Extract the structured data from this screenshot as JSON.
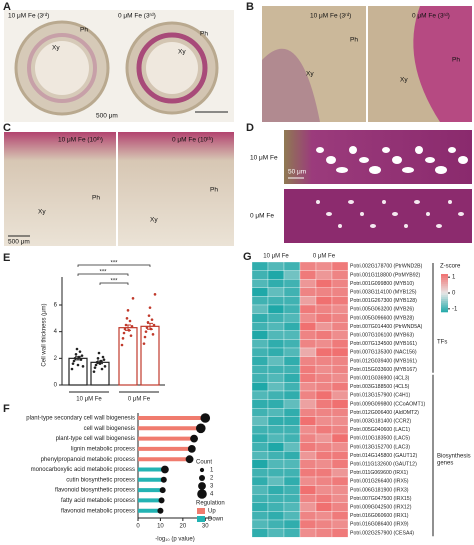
{
  "panel_a": {
    "label": "A",
    "left_title": "10 μM Fe (3ʳᵈ)",
    "right_title": "0 μM Fe (3ʳᵈ)",
    "ph": "Ph",
    "xy": "Xy",
    "scale_bar": "500 μm"
  },
  "panel_b": {
    "label": "B",
    "left_title": "10 μM Fe (3ʳᵈ)",
    "right_title": "0 μM Fe (3ʳᵈ)",
    "ph": "Ph",
    "xy": "Xy"
  },
  "panel_c": {
    "label": "C",
    "left_title": "10 μM Fe (10ᵗʰ)",
    "right_title": "0 μM Fe (10ᵗʰ)",
    "ph": "Ph",
    "xy": "Xy",
    "scale_bar": "500 μm"
  },
  "panel_d": {
    "label": "D",
    "row_labels": [
      "10 μM Fe",
      "0 μM Fe"
    ],
    "scale_bar": "50 μm"
  },
  "chart_data": [
    {
      "type": "bar",
      "label": "E",
      "y_label": "Cell wall thickness (μm)",
      "categories": [
        null,
        null,
        null,
        null
      ],
      "group_labels": [
        "10 μM Fe",
        "0 μM Fe"
      ],
      "values": [
        2.0,
        1.7,
        4.3,
        4.4
      ],
      "errors": [
        0.12,
        0.1,
        0.2,
        0.22
      ],
      "points": [
        [
          1.2,
          1.6,
          1.8,
          2.0,
          2.3,
          2.7,
          1.5,
          2.1,
          2.5,
          1.9,
          2.2,
          1.4
        ],
        [
          1.0,
          1.3,
          1.5,
          1.7,
          2.0,
          2.4,
          1.6,
          1.8,
          1.2,
          2.1,
          1.9,
          1.4
        ],
        [
          3.0,
          3.5,
          3.9,
          4.2,
          4.5,
          5.0,
          5.6,
          4.1,
          4.8,
          3.7,
          4.4,
          6.5
        ],
        [
          3.1,
          3.6,
          4.0,
          4.3,
          4.7,
          5.2,
          5.8,
          4.2,
          4.9,
          3.8,
          4.5,
          6.8
        ]
      ],
      "colors": [
        "#222222",
        "#222222",
        "#c0392b",
        "#c0392b"
      ],
      "ylim": [
        0,
        7.5
      ],
      "yticks": [
        0,
        2,
        4,
        6
      ],
      "significance_labels": [
        "***",
        "***",
        "***"
      ]
    },
    {
      "type": "lollipop",
      "label": "F",
      "x_label": "-log₁₀ (p value)",
      "categories": [
        "plant-type secondary cell wall biogenesis",
        "cell wall biogenesis",
        "plant-type cell wall biogenesis",
        "lignin metabolic process",
        "phenylpropanoid metabolic process",
        "monocarboxylic acid metabolic process",
        "cutin biosynthetic process",
        "flavonoid biosynthetic process",
        "fatty acid metabolic process",
        "flavonoid metabolic process"
      ],
      "series": [
        {
          "name": "Up",
          "color": "#f07b6e",
          "values": [
            30,
            28,
            25,
            24,
            23,
            null,
            null,
            null,
            null,
            null
          ],
          "counts": [
            4,
            4,
            3,
            3,
            3,
            null,
            null,
            null,
            null,
            null
          ]
        },
        {
          "name": "Down",
          "color": "#22b3b3",
          "values": [
            null,
            null,
            null,
            null,
            null,
            12,
            11.5,
            11,
            10.5,
            10
          ],
          "counts": [
            null,
            null,
            null,
            null,
            null,
            3,
            2,
            2,
            2,
            2
          ]
        }
      ],
      "xlim": [
        0,
        33
      ],
      "xticks": [
        0,
        10,
        20,
        30
      ],
      "size_legend_title": "Count",
      "size_legend": [
        1,
        2,
        3,
        4
      ],
      "color_legend_title": "Regulation"
    },
    {
      "type": "heatmap",
      "label": "G",
      "column_groups": [
        "10 μM Fe",
        "0 μM Fe"
      ],
      "rows": [
        "Potri.002G178700 (PtrWND2B)",
        "Potri.001G118800 (PtrMYB92)",
        "Potri.001G099800 (MYB10)",
        "Potri.003G114100 (MYB125)",
        "Potri.001G267300 (MYB128)",
        "Potri.005G063200 (MYB26)",
        "Potri.005G096600 (MYB28)",
        "Potri.007G014400 (PtrWND5A)",
        "Potri.007G106100 (MYB63)",
        "Potri.007G134500 (MYB161)",
        "Potri.007G135300 (NAC156)",
        "Potri.012G039400 (MYB161)",
        "Potri.015G033600 (MYB167)",
        "Potri.001G036900 (4CL3)",
        "Potri.003G188500 (4CL5)",
        "Potri.013G157900 (C4H1)",
        "Potri.009G099800 (CCoAOMT1)",
        "Potri.012G006400 (AldOMT2)",
        "Potri.003G181400 (CCR2)",
        "Potri.005G040600 (LAC1)",
        "Potri.010G183500 (LAC5)",
        "Potri.013G152700 (LAC3)",
        "Potri.014G145800 (GAUT12)",
        "Potri.011G132600 (GAUT12)",
        "Potri.011G069600 (IRX1)",
        "Potri.001G266400 (IRX5)",
        "Potri.006G181900 (IRX3)",
        "Potri.007G047500 (IRX15)",
        "Potri.009G042500 (IRX12)",
        "Potri.016G060600 (IRX1)",
        "Potri.016G086400 (IRX9)",
        "Potri.002G257900 (CESA4)"
      ],
      "values": [
        [
          -1.1,
          -0.9,
          -1.0,
          1.0,
          0.9,
          1.1
        ],
        [
          -1.0,
          -1.2,
          -0.7,
          1.1,
          0.8,
          1.0
        ],
        [
          -0.9,
          -1.1,
          -1.0,
          0.8,
          1.2,
          1.0
        ],
        [
          -1.2,
          -0.8,
          -1.0,
          1.0,
          1.0,
          1.0
        ],
        [
          -1.0,
          -1.0,
          -1.0,
          0.7,
          1.2,
          1.1
        ],
        [
          -0.8,
          -1.2,
          -1.0,
          1.1,
          1.0,
          0.9
        ],
        [
          -1.1,
          -1.0,
          -0.9,
          0.9,
          1.1,
          1.0
        ],
        [
          -1.0,
          -0.9,
          -1.1,
          1.2,
          0.8,
          1.0
        ],
        [
          -1.2,
          -0.9,
          -0.9,
          1.0,
          1.1,
          0.9
        ],
        [
          -0.9,
          -1.1,
          -1.0,
          1.0,
          0.9,
          1.1
        ],
        [
          -1.0,
          -1.1,
          -0.9,
          0.6,
          1.2,
          1.2
        ],
        [
          -1.1,
          -0.8,
          -1.1,
          1.0,
          1.0,
          1.0
        ],
        [
          -1.0,
          -1.0,
          -1.0,
          1.1,
          0.9,
          1.0
        ],
        [
          -1.0,
          -0.9,
          -1.1,
          1.1,
          1.0,
          0.9
        ],
        [
          -1.2,
          -0.8,
          -1.0,
          0.9,
          1.0,
          1.1
        ],
        [
          -0.9,
          -1.0,
          -1.1,
          1.0,
          1.2,
          0.8
        ],
        [
          -1.1,
          -1.1,
          -0.8,
          0.7,
          1.1,
          1.2
        ],
        [
          -1.0,
          -0.9,
          -1.1,
          1.0,
          1.0,
          1.0
        ],
        [
          -0.8,
          -1.1,
          -1.1,
          1.2,
          0.9,
          0.9
        ],
        [
          -1.0,
          -1.0,
          -1.0,
          0.9,
          1.1,
          1.0
        ],
        [
          -1.1,
          -0.9,
          -1.0,
          1.0,
          0.8,
          1.2
        ],
        [
          -1.0,
          -1.2,
          -0.8,
          1.1,
          1.0,
          0.9
        ],
        [
          -0.9,
          -1.0,
          -1.1,
          0.8,
          1.1,
          1.1
        ],
        [
          -1.2,
          -0.9,
          -0.9,
          1.0,
          0.9,
          1.1
        ],
        [
          -1.0,
          -1.0,
          -1.0,
          1.1,
          1.1,
          0.8
        ],
        [
          -1.1,
          -0.8,
          -1.1,
          0.9,
          1.0,
          1.1
        ],
        [
          -0.9,
          -1.1,
          -1.0,
          1.2,
          0.9,
          0.9
        ],
        [
          -1.0,
          -1.0,
          -1.0,
          1.0,
          1.1,
          0.9
        ],
        [
          -1.1,
          -1.0,
          -0.9,
          0.8,
          1.2,
          1.0
        ],
        [
          -1.0,
          -1.1,
          -0.9,
          1.0,
          0.9,
          1.1
        ],
        [
          -0.9,
          -1.0,
          -1.1,
          1.1,
          1.0,
          0.9
        ],
        [
          -1.1,
          -0.9,
          -1.0,
          0.9,
          1.0,
          1.1
        ]
      ],
      "zlim": [
        -1.2,
        1.2
      ],
      "low_color": "#1fa8a8",
      "mid_color": "#e6e6e6",
      "high_color": "#f07070",
      "colorbar_title": "Z-score",
      "colorbar_ticks": [
        1,
        0,
        -1
      ],
      "row_groups": [
        "TFs",
        "Biosynthesis genes"
      ]
    }
  ]
}
